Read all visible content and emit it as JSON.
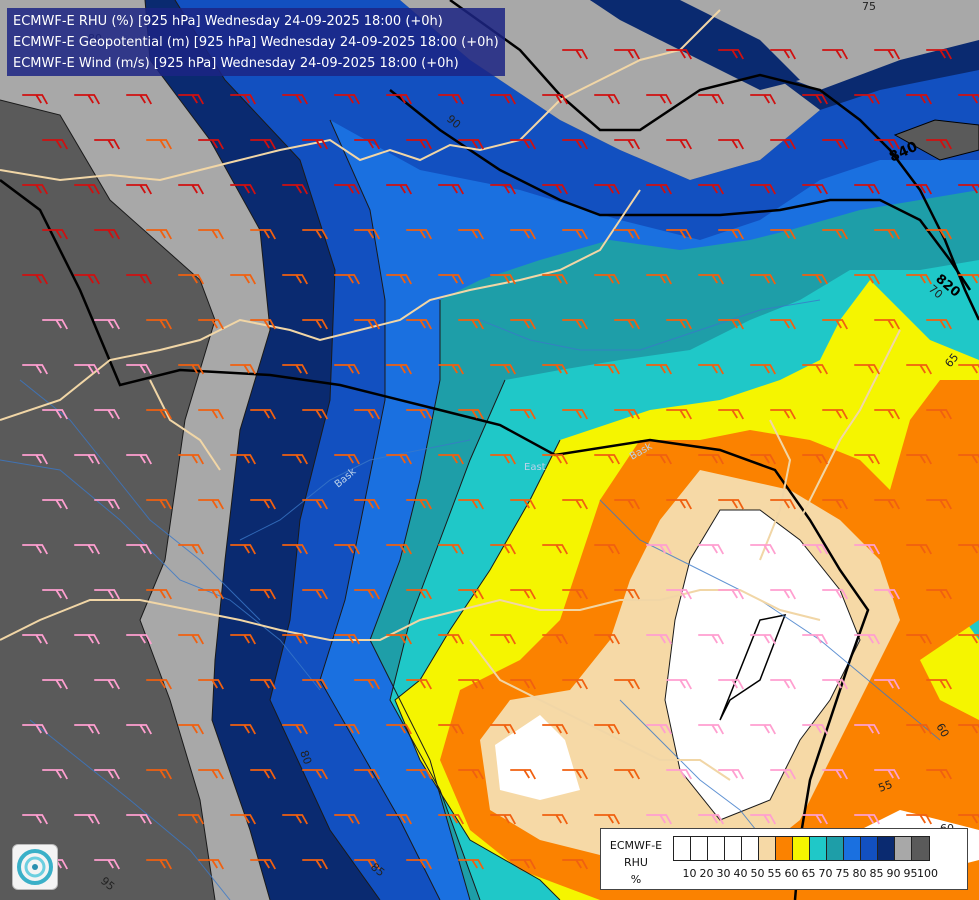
{
  "header": {
    "line1": "ECMWF-E RHU (%) [925 hPa] Wednesday 24-09-2025 18:00 (+0h)",
    "line2": "ECMWF-E Geopotential (m) [925 hPa] Wednesday 24-09-2025 18:00 (+0h)",
    "line3": "ECMWF-E Wind (m/s) [925 hPa] Wednesday 24-09-2025 18:00 (+0h)"
  },
  "legend": {
    "line1": "ECMWF-E",
    "line2": "RHU",
    "line3": "%",
    "ticks": [
      "10",
      "20",
      "30",
      "40",
      "50",
      "55",
      "60",
      "65",
      "70",
      "75",
      "80",
      "85",
      "90",
      "95",
      "100"
    ],
    "colors": [
      "#ffffff",
      "#ffffff",
      "#ffffff",
      "#ffffff",
      "#ffffff",
      "#f6d9a6",
      "#fb8200",
      "#f5f500",
      "#1fc8c8",
      "#1e9ea8",
      "#1a70e0",
      "#1250c0",
      "#0a2a70",
      "#a8a8a8",
      "#5a5a5a"
    ]
  },
  "contour_labels": {
    "geopotential": [
      "840",
      "820"
    ],
    "rhu": [
      "75",
      "80",
      "80",
      "85",
      "95",
      "70",
      "65",
      "60",
      "55",
      "60",
      "90"
    ]
  },
  "place_labels": [
    "East",
    "Bask",
    "Bask",
    "Ko"
  ],
  "colors": {
    "header_bg": "#1c2484",
    "border_line": "#f1d6a6"
  }
}
